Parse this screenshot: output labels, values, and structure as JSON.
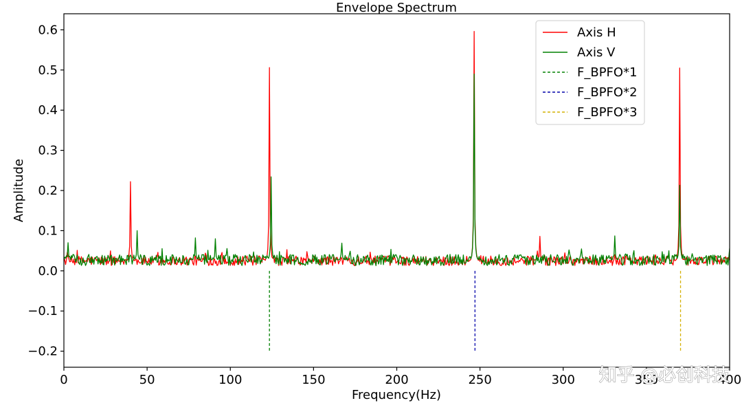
{
  "chart_data": {
    "type": "line",
    "title": "Envelope Spectrum",
    "xlabel": "Frequency(Hz)",
    "ylabel": "Amplitude",
    "xlim": [
      0,
      400
    ],
    "ylim": [
      -0.24,
      0.64
    ],
    "xticks": [
      0,
      50,
      100,
      150,
      200,
      250,
      300,
      350,
      400
    ],
    "xtick_labels": [
      "0",
      "50",
      "100",
      "150",
      "200",
      "250",
      "300",
      "350",
      "400"
    ],
    "yticks": [
      -0.2,
      -0.1,
      0.0,
      0.1,
      0.2,
      0.3,
      0.4,
      0.5,
      0.6
    ],
    "ytick_labels": [
      "−0.2",
      "−0.1",
      "0.0",
      "0.1",
      "0.2",
      "0.3",
      "0.4",
      "0.5",
      "0.6"
    ],
    "grid": false,
    "legend_position": "top-right",
    "series": [
      {
        "name": "Axis H",
        "color": "#ff0000",
        "baseline": 0.025,
        "noise": 0.012,
        "peaks": [
          {
            "x": 40,
            "y": 0.222
          },
          {
            "x": 123.5,
            "y": 0.506
          },
          {
            "x": 246.5,
            "y": 0.596
          },
          {
            "x": 286,
            "y": 0.086
          },
          {
            "x": 370,
            "y": 0.505
          }
        ]
      },
      {
        "name": "Axis V",
        "color": "#008000",
        "baseline": 0.027,
        "noise": 0.014,
        "peaks": [
          {
            "x": 2.5,
            "y": 0.07
          },
          {
            "x": 44,
            "y": 0.1
          },
          {
            "x": 79,
            "y": 0.082
          },
          {
            "x": 91,
            "y": 0.08
          },
          {
            "x": 124.5,
            "y": 0.234
          },
          {
            "x": 167,
            "y": 0.069
          },
          {
            "x": 246.5,
            "y": 0.49
          },
          {
            "x": 331,
            "y": 0.087
          },
          {
            "x": 370,
            "y": 0.213
          }
        ]
      }
    ],
    "vlines": [
      {
        "name": "F_BPFO*1",
        "x": 123.5,
        "y_from": -0.2,
        "y_to": 0.0,
        "color": "#008000",
        "style": "dashed"
      },
      {
        "name": "F_BPFO*2",
        "x": 247,
        "y_from": -0.2,
        "y_to": 0.0,
        "color": "#0000aa",
        "style": "dashed"
      },
      {
        "name": "F_BPFO*3",
        "x": 370.5,
        "y_from": -0.2,
        "y_to": 0.0,
        "color": "#d4b000",
        "style": "dashed"
      }
    ]
  },
  "watermark": "知乎 @必创科技"
}
